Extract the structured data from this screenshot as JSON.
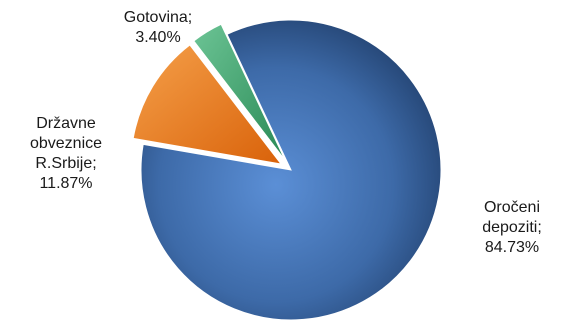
{
  "chart_data": {
    "type": "pie",
    "title": "",
    "slices": [
      {
        "name": "Oročeni depoziti",
        "value": 84.73,
        "label": [
          "Oročeni",
          "depoziti;",
          "84.73%"
        ],
        "color": "#3f6fb0"
      },
      {
        "name": "Državne obveznice R.Srbije",
        "value": 11.87,
        "label": [
          "Državne",
          "obveznice",
          "R.Srbije;",
          "11.87%"
        ],
        "color": "#ee7a1e"
      },
      {
        "name": "Gotovina",
        "value": 3.4,
        "label": [
          "Gotovina;",
          "3.40%"
        ],
        "color": "#3fa46d"
      }
    ]
  }
}
